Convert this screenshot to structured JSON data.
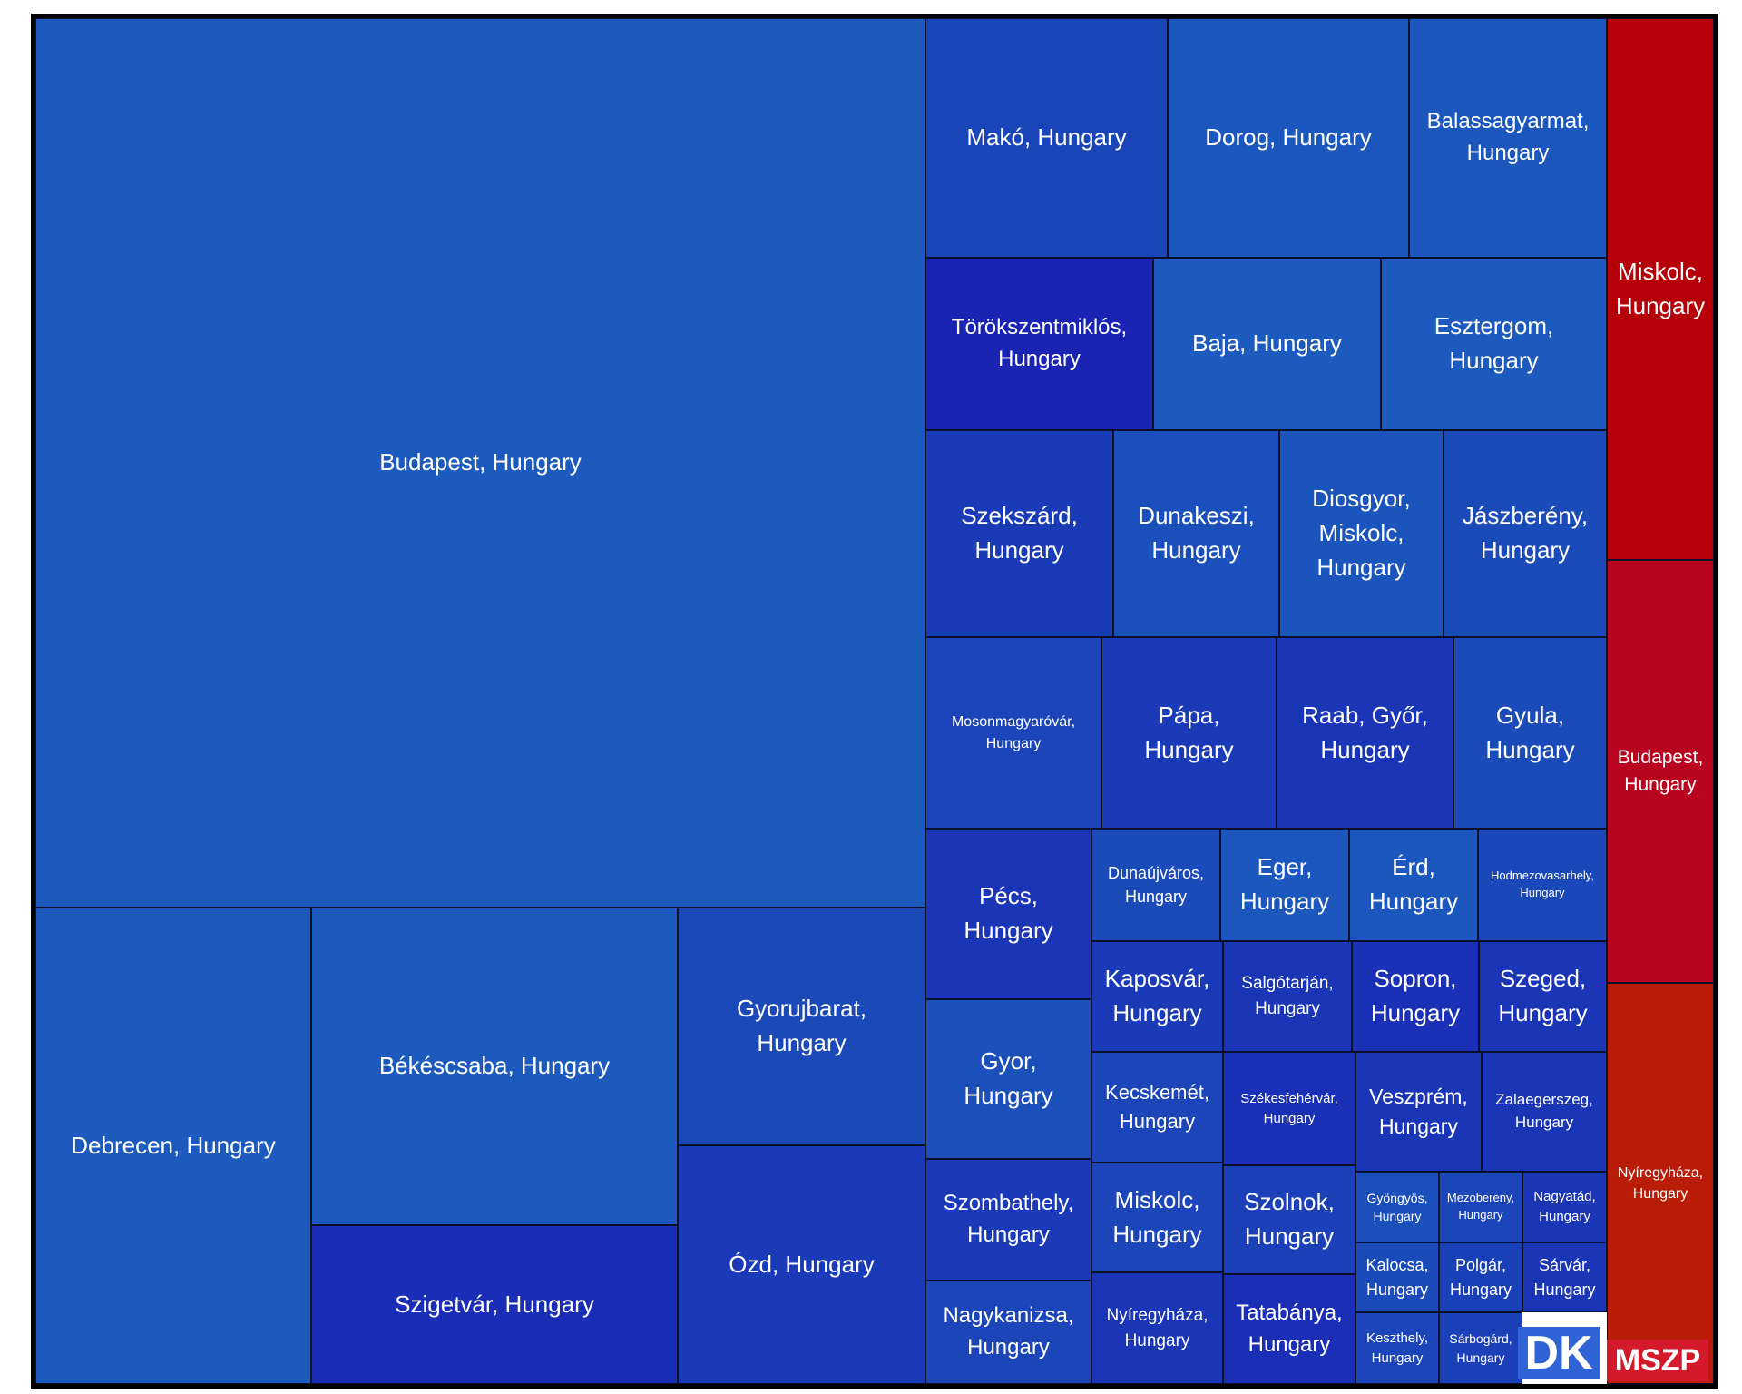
{
  "chart_data": {
    "type": "treemap",
    "groups": [
      {
        "name": "DK",
        "color": "#1c57bd",
        "items": [
          {
            "label": "Budapest, Hungary",
            "color": "#1c5bbd"
          },
          {
            "label": "Debrecen, Hungary",
            "color": "#1c5bbd"
          },
          {
            "label": "Békéscsaba, Hungary",
            "color": "#1c5bbd"
          },
          {
            "label": "Szigetvár, Hungary",
            "color": "#1a2db6"
          },
          {
            "label": "Gyorujbarat, Hungary",
            "color": "#1b4ab8"
          },
          {
            "label": "Ózd, Hungary",
            "color": "#1a3ab7"
          },
          {
            "label": "Makó, Hungary",
            "color": "#1a45b9"
          },
          {
            "label": "Dorog, Hungary",
            "color": "#1c57bd"
          },
          {
            "label": "Balassagyarmat, Hungary",
            "color": "#1c57bd"
          },
          {
            "label": "Törökszentmiklós, Hungary",
            "color": "#1a24b3"
          },
          {
            "label": "Baja, Hungary",
            "color": "#1c5bbd"
          },
          {
            "label": "Esztergom, Hungary",
            "color": "#1c5bbd"
          },
          {
            "label": "Szekszárd, Hungary",
            "color": "#1a3bb8"
          },
          {
            "label": "Dunakeszi, Hungary",
            "color": "#1b4fbb"
          },
          {
            "label": "Diosgyor, Miskolc, Hungary",
            "color": "#1b55bc"
          },
          {
            "label": "Jászberény, Hungary",
            "color": "#1b4ab9"
          },
          {
            "label": "Mosonmagyaróvár, Hungary",
            "color": "#1b45b9"
          },
          {
            "label": "Pápa, Hungary",
            "color": "#1a3ab7"
          },
          {
            "label": "Raab, Győr, Hungary",
            "color": "#1a35b6"
          },
          {
            "label": "Gyula, Hungary",
            "color": "#1b4ab9"
          },
          {
            "label": "Pécs, Hungary",
            "color": "#1a35b6"
          },
          {
            "label": "Dunaújváros, Hungary",
            "color": "#1b4ab9"
          },
          {
            "label": "Eger, Hungary",
            "color": "#1c57bd"
          },
          {
            "label": "Érd, Hungary",
            "color": "#1c57bd"
          },
          {
            "label": "Hodmezovasarhely, Hungary",
            "color": "#1b48b9"
          },
          {
            "label": "Gyor, Hungary",
            "color": "#1b50bb"
          },
          {
            "label": "Kaposvár, Hungary",
            "color": "#1a3ab7"
          },
          {
            "label": "Salgótarján, Hungary",
            "color": "#1a35b6"
          },
          {
            "label": "Sopron, Hungary",
            "color": "#1a30b6"
          },
          {
            "label": "Szeged, Hungary",
            "color": "#1a35b6"
          },
          {
            "label": "Kecskemét, Hungary",
            "color": "#1b45b9"
          },
          {
            "label": "Székesfehérvár, Hungary",
            "color": "#1a30b6"
          },
          {
            "label": "Veszprém, Hungary",
            "color": "#1a35b6"
          },
          {
            "label": "Zalaegerszeg, Hungary",
            "color": "#1a35b6"
          },
          {
            "label": "Szombathely, Hungary",
            "color": "#1a3ab7"
          },
          {
            "label": "Miskolc, Hungary",
            "color": "#1b45b9"
          },
          {
            "label": "Szolnok, Hungary",
            "color": "#1b40b8"
          },
          {
            "label": "Gyöngyös, Hungary",
            "color": "#1b4fbb"
          },
          {
            "label": "Mezobereny, Hungary",
            "color": "#1b45b9"
          },
          {
            "label": "Nagyatád, Hungary",
            "color": "#1a35b6"
          },
          {
            "label": "Kalocsa, Hungary",
            "color": "#1b4ab9"
          },
          {
            "label": "Polgár, Hungary",
            "color": "#1a40b8"
          },
          {
            "label": "Sárvár, Hungary",
            "color": "#1a35b6"
          },
          {
            "label": "Nagykanizsa, Hungary",
            "color": "#1b45b9"
          },
          {
            "label": "Nyíregyháza, Hungary",
            "color": "#1a35b6"
          },
          {
            "label": "Tatabánya, Hungary",
            "color": "#1a2fb6"
          },
          {
            "label": "Keszthely, Hungary",
            "color": "#1b45b9"
          },
          {
            "label": "Sárbogárd, Hungary",
            "color": "#1b40b8"
          }
        ]
      },
      {
        "name": "MSZP",
        "color": "#d0172b",
        "items": [
          {
            "label": "Miskolc, Hungary",
            "color": "#b50007"
          },
          {
            "label": "Budapest, Hungary",
            "color": "#b9041f"
          },
          {
            "label": "Nyíregyháza, Hungary",
            "color": "#b91d07"
          }
        ]
      }
    ]
  }
}
